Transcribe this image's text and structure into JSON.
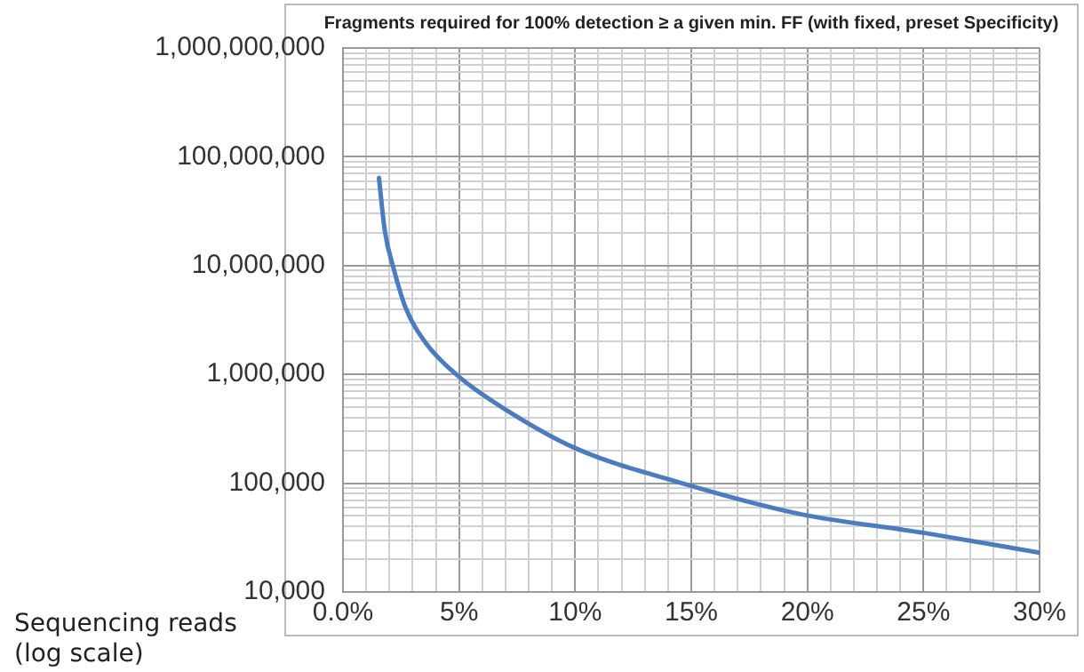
{
  "chart_data": {
    "type": "line",
    "title": "Fragments required for 100% detection ≥ a given min. FF (with fixed, preset Specificity)",
    "ylabel": "Sequencing reads (log scale)",
    "log": "y",
    "grid": true,
    "legend": false,
    "marker": "none",
    "line_style": "solid",
    "xlim": [
      0,
      30
    ],
    "ylim": [
      10000,
      1000000000
    ],
    "xticks": [
      {
        "value": 0,
        "label": "0.0%"
      },
      {
        "value": 1,
        "label": null
      },
      {
        "value": 2,
        "label": null
      },
      {
        "value": 3,
        "label": null
      },
      {
        "value": 4,
        "label": null
      },
      {
        "value": 5,
        "label": "5%"
      },
      {
        "value": 6,
        "label": null
      },
      {
        "value": 7,
        "label": null
      },
      {
        "value": 8,
        "label": null
      },
      {
        "value": 9,
        "label": null
      },
      {
        "value": 10,
        "label": "10%"
      },
      {
        "value": 11,
        "label": null
      },
      {
        "value": 12,
        "label": null
      },
      {
        "value": 13,
        "label": null
      },
      {
        "value": 14,
        "label": null
      },
      {
        "value": 15,
        "label": "15%"
      },
      {
        "value": 16,
        "label": null
      },
      {
        "value": 17,
        "label": null
      },
      {
        "value": 18,
        "label": null
      },
      {
        "value": 19,
        "label": null
      },
      {
        "value": 20,
        "label": "20%"
      },
      {
        "value": 21,
        "label": null
      },
      {
        "value": 22,
        "label": null
      },
      {
        "value": 23,
        "label": null
      },
      {
        "value": 24,
        "label": null
      },
      {
        "value": 25,
        "label": "25%"
      },
      {
        "value": 26,
        "label": null
      },
      {
        "value": 27,
        "label": null
      },
      {
        "value": 28,
        "label": null
      },
      {
        "value": 29,
        "label": null
      },
      {
        "value": 30,
        "label": "30%"
      }
    ],
    "yticks": [
      {
        "value": 10000,
        "label": "10,000"
      },
      {
        "value": 20000,
        "label": null
      },
      {
        "value": 30000,
        "label": null
      },
      {
        "value": 40000,
        "label": null
      },
      {
        "value": 50000,
        "label": null
      },
      {
        "value": 60000,
        "label": null
      },
      {
        "value": 70000,
        "label": null
      },
      {
        "value": 80000,
        "label": null
      },
      {
        "value": 90000,
        "label": null
      },
      {
        "value": 100000,
        "label": "100,000"
      },
      {
        "value": 200000,
        "label": null
      },
      {
        "value": 300000,
        "label": null
      },
      {
        "value": 400000,
        "label": null
      },
      {
        "value": 500000,
        "label": null
      },
      {
        "value": 600000,
        "label": null
      },
      {
        "value": 700000,
        "label": null
      },
      {
        "value": 800000,
        "label": null
      },
      {
        "value": 900000,
        "label": null
      },
      {
        "value": 1000000,
        "label": "1,000,000"
      },
      {
        "value": 2000000,
        "label": null
      },
      {
        "value": 3000000,
        "label": null
      },
      {
        "value": 4000000,
        "label": null
      },
      {
        "value": 5000000,
        "label": null
      },
      {
        "value": 6000000,
        "label": null
      },
      {
        "value": 7000000,
        "label": null
      },
      {
        "value": 8000000,
        "label": null
      },
      {
        "value": 9000000,
        "label": null
      },
      {
        "value": 10000000,
        "label": "10,000,000"
      },
      {
        "value": 20000000,
        "label": null
      },
      {
        "value": 30000000,
        "label": null
      },
      {
        "value": 40000000,
        "label": null
      },
      {
        "value": 50000000,
        "label": null
      },
      {
        "value": 60000000,
        "label": null
      },
      {
        "value": 70000000,
        "label": null
      },
      {
        "value": 80000000,
        "label": null
      },
      {
        "value": 90000000,
        "label": null
      },
      {
        "value": 100000000,
        "label": "100,000,000"
      },
      {
        "value": 200000000,
        "label": null
      },
      {
        "value": 300000000,
        "label": null
      },
      {
        "value": 400000000,
        "label": null
      },
      {
        "value": 500000000,
        "label": null
      },
      {
        "value": 600000000,
        "label": null
      },
      {
        "value": 700000000,
        "label": null
      },
      {
        "value": 800000000,
        "label": null
      },
      {
        "value": 900000000,
        "label": null
      },
      {
        "value": 1000000000,
        "label": "1,000,000,000"
      }
    ],
    "series": [
      {
        "color": "#4a7cc4",
        "x": [
          1.55,
          1.8,
          2.2,
          2.7,
          3.6,
          5.0,
          6.9,
          10.0,
          14.6,
          19.7,
          25,
          30
        ],
        "values": [
          64000000,
          21000000,
          9100000,
          4100000,
          1900000,
          950000,
          490000,
          210000,
          100000,
          52000,
          35000,
          23000
        ]
      }
    ]
  }
}
